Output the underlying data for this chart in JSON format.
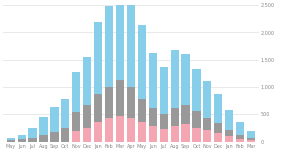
{
  "categories": [
    "May",
    "Jun",
    "Jul",
    "Aug",
    "Sep",
    "Oct",
    "Nov",
    "Dec",
    "Jan",
    "Feb",
    "Mar",
    "Apr",
    "May",
    "Jun",
    "Jul",
    "Aug",
    "Sep",
    "Oct",
    "Nov",
    "Dec",
    "Jan",
    "Feb",
    "Mar"
  ],
  "blue": [
    45,
    80,
    190,
    330,
    460,
    530,
    720,
    870,
    1300,
    1480,
    2150,
    1650,
    1350,
    1020,
    870,
    1060,
    920,
    770,
    670,
    520,
    360,
    230,
    140
  ],
  "gray": [
    25,
    50,
    70,
    130,
    180,
    260,
    360,
    420,
    520,
    570,
    660,
    570,
    430,
    330,
    260,
    330,
    360,
    300,
    230,
    180,
    115,
    70,
    40
  ],
  "pink": [
    0,
    0,
    0,
    0,
    0,
    0,
    190,
    260,
    360,
    430,
    475,
    430,
    360,
    280,
    240,
    290,
    320,
    260,
    210,
    165,
    100,
    55,
    25
  ],
  "blue_color": "#87CEEB",
  "gray_color": "#999999",
  "pink_color": "#F4A7B2",
  "bg_color": "#ffffff",
  "grid_color": "#e0e0e0",
  "ylim": [
    0,
    2500
  ],
  "yticks": [
    0,
    500,
    1000,
    1500,
    2000,
    2500
  ],
  "ytick_labels": [
    "0",
    "500",
    "1,000",
    "1,500",
    "2,000",
    "2,500"
  ]
}
